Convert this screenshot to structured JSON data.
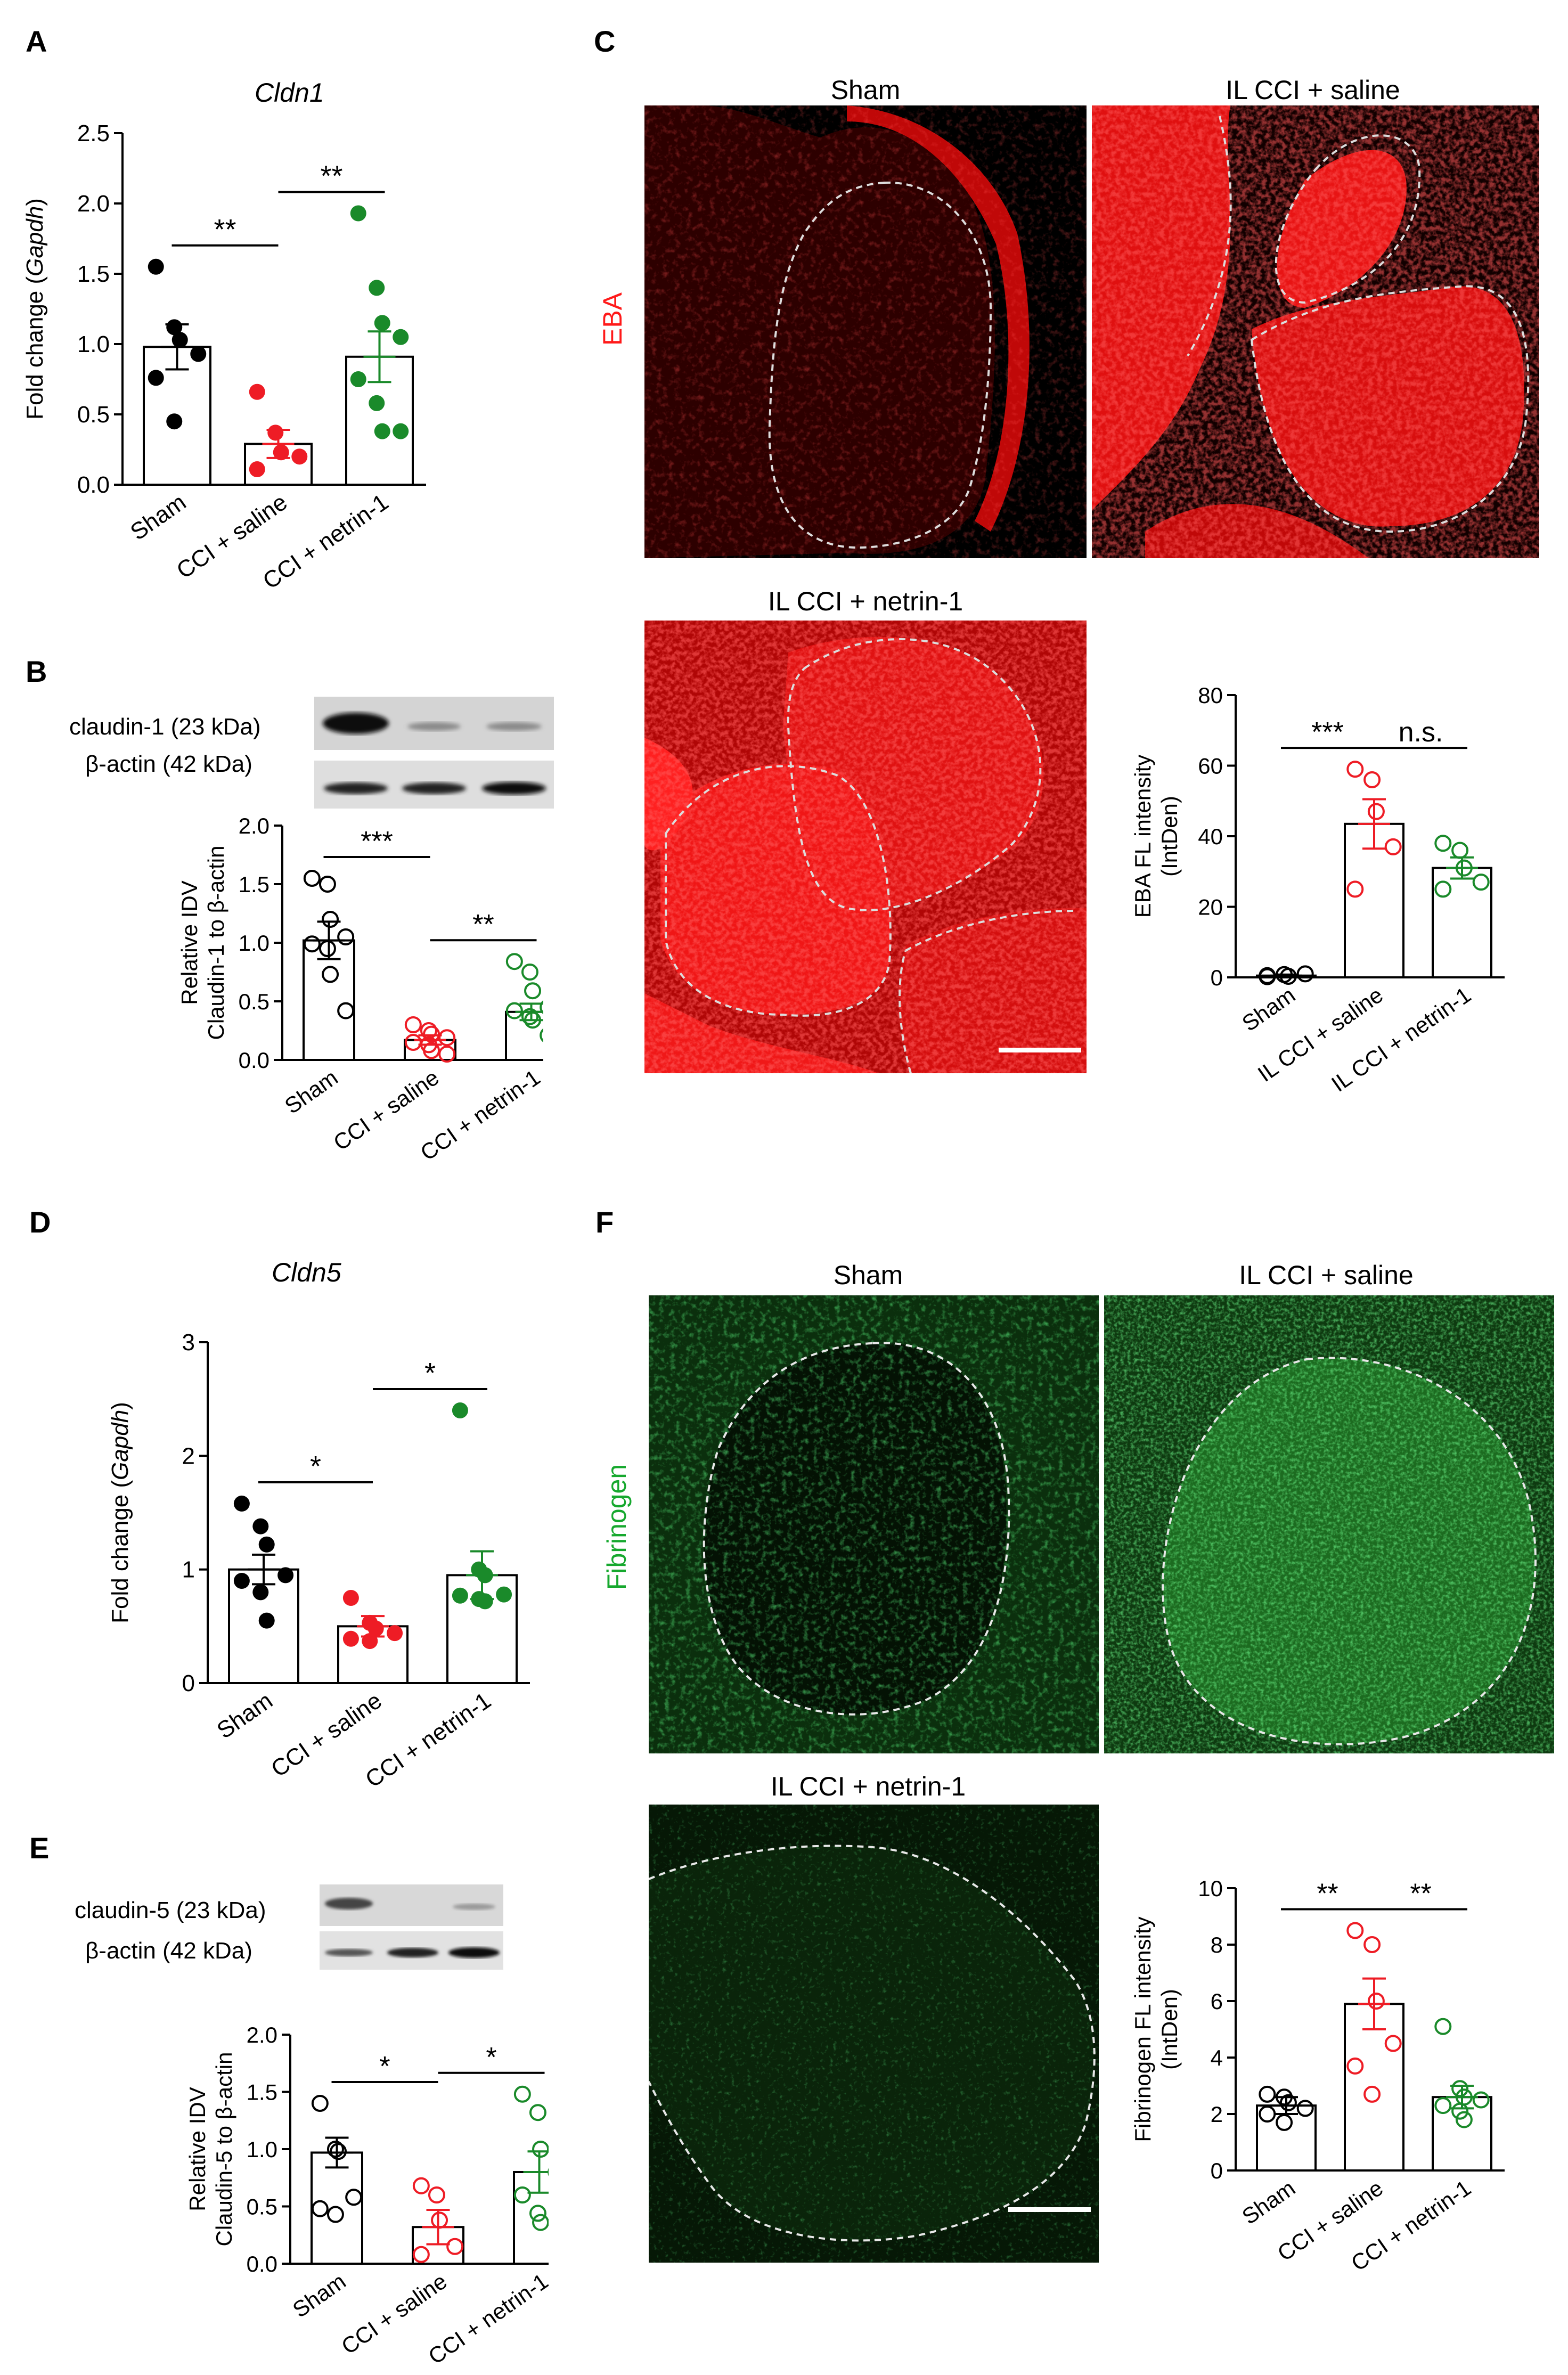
{
  "colors": {
    "sham": "#000000",
    "saline": "#ee1c25",
    "netrin": "#1a8a2a",
    "eba_red": "#ff1a1a",
    "fibrinogen_green": "#16a82e"
  },
  "panel_letters": {
    "A": "A",
    "B": "B",
    "C": "C",
    "D": "D",
    "E": "E",
    "F": "F"
  },
  "panel_A": {
    "gene": "Cldn1"
  },
  "panel_B": {
    "blot_row1": "claudin-1 (23 kDa)",
    "blot_row2": "β-actin (42 kDa)"
  },
  "panel_C": {
    "stain": "EBA",
    "img1_title": "Sham",
    "img2_title": "IL CCI + saline",
    "img3_title": "IL CCI + netrin-1"
  },
  "panel_D": {
    "gene": "Cldn5"
  },
  "panel_E": {
    "blot_row1": "claudin-5 (23 kDa)",
    "blot_row2": "β-actin (42 kDa)"
  },
  "panel_F": {
    "stain": "Fibrinogen",
    "img1_title": "Sham",
    "img2_title": "IL CCI + saline",
    "img3_title": "IL CCI + netrin-1"
  },
  "chart_data": [
    {
      "id": "A",
      "type": "bar",
      "title": "Cldn1",
      "ylabel": "Fold change (Gapdh)",
      "ylim": [
        0,
        2.5
      ],
      "yticks": [
        "0.0",
        "0.5",
        "1.0",
        "1.5",
        "2.0",
        "2.5"
      ],
      "categories": [
        "Sham",
        "CCI + saline",
        "CCI + netrin-1"
      ],
      "values": [
        0.98,
        0.29,
        0.91
      ],
      "sem": [
        0.16,
        0.1,
        0.18
      ],
      "points": [
        [
          1.55,
          1.12,
          1.03,
          0.93,
          0.76,
          0.45
        ],
        [
          0.66,
          0.37,
          0.23,
          0.2,
          0.11
        ],
        [
          1.93,
          1.4,
          1.15,
          1.05,
          0.75,
          0.58,
          0.38,
          0.38
        ]
      ],
      "filled": true,
      "significance": [
        {
          "from": 0,
          "to": 1,
          "label": "**"
        },
        {
          "from": 1,
          "to": 2,
          "label": "**"
        }
      ]
    },
    {
      "id": "B",
      "type": "bar",
      "ylabel": "Relative IDV Claudin-1 to β-actin",
      "ylim": [
        0,
        2.0
      ],
      "yticks": [
        "0.0",
        "0.5",
        "1.0",
        "1.5",
        "2.0"
      ],
      "categories": [
        "Sham",
        "CCI + saline",
        "CCI + netrin-1"
      ],
      "values": [
        1.02,
        0.17,
        0.41
      ],
      "sem": [
        0.16,
        0.04,
        0.07
      ],
      "points": [
        [
          1.55,
          1.5,
          1.2,
          1.05,
          0.99,
          0.95,
          0.73,
          0.42
        ],
        [
          0.3,
          0.25,
          0.22,
          0.19,
          0.15,
          0.13,
          0.08,
          0.05
        ],
        [
          0.84,
          0.75,
          0.59,
          0.45,
          0.42,
          0.37,
          0.34,
          0.21
        ]
      ],
      "filled": false,
      "significance": [
        {
          "from": 0,
          "to": 1,
          "label": "***"
        },
        {
          "from": 1,
          "to": 2,
          "label": "**"
        }
      ]
    },
    {
      "id": "C",
      "type": "bar",
      "ylabel": "EBA FL intensity (IntDen)",
      "ylim": [
        0,
        80
      ],
      "yticks": [
        "0",
        "20",
        "40",
        "60",
        "80"
      ],
      "categories": [
        "Sham",
        "IL CCI + saline",
        "IL CCI + netrin-1"
      ],
      "values": [
        0.5,
        43.5,
        31.0
      ],
      "sem": [
        0.3,
        7.0,
        3.0
      ],
      "points": [
        [
          0.5,
          0.8,
          0.3,
          1.0,
          0.2
        ],
        [
          59,
          56,
          47,
          37,
          25
        ],
        [
          38,
          36,
          31,
          27,
          25
        ]
      ],
      "filled": false,
      "significance": [
        {
          "from": 0,
          "to": 1,
          "label": "***"
        },
        {
          "from": 1,
          "to": 2,
          "label": "n.s."
        }
      ]
    },
    {
      "id": "D",
      "type": "bar",
      "title": "Cldn5",
      "ylabel": "Fold change (Gapdh)",
      "ylim": [
        0,
        3
      ],
      "yticks": [
        "0",
        "1",
        "2",
        "3"
      ],
      "categories": [
        "Sham",
        "CCI + saline",
        "CCI + netrin-1"
      ],
      "values": [
        1.0,
        0.5,
        0.95
      ],
      "sem": [
        0.13,
        0.09,
        0.21
      ],
      "points": [
        [
          1.58,
          1.38,
          1.22,
          0.95,
          0.9,
          0.8,
          0.55
        ],
        [
          0.75,
          0.53,
          0.48,
          0.44,
          0.39,
          0.37
        ],
        [
          2.4,
          1.0,
          0.95,
          0.78,
          0.77,
          0.74,
          0.72
        ]
      ],
      "filled": true,
      "significance": [
        {
          "from": 0,
          "to": 1,
          "label": "*"
        },
        {
          "from": 1,
          "to": 2,
          "label": "*"
        }
      ]
    },
    {
      "id": "E",
      "type": "bar",
      "ylabel": "Relative IDV Claudin-5 to β-actin",
      "ylim": [
        0,
        2.0
      ],
      "yticks": [
        "0.0",
        "0.5",
        "1.0",
        "1.5",
        "2.0"
      ],
      "categories": [
        "Sham",
        "CCI + saline",
        "CCI + netrin-1"
      ],
      "values": [
        0.97,
        0.32,
        0.8
      ],
      "sem": [
        0.13,
        0.15,
        0.18
      ],
      "points": [
        [
          1.4,
          1.0,
          0.98,
          0.58,
          0.48,
          0.43
        ],
        [
          0.68,
          0.6,
          0.38,
          0.15,
          0.08
        ],
        [
          1.48,
          1.32,
          1.0,
          0.8,
          0.6,
          0.44,
          0.36
        ]
      ],
      "filled": false,
      "significance": [
        {
          "from": 0,
          "to": 1,
          "label": "*"
        },
        {
          "from": 1,
          "to": 2,
          "label": "*"
        }
      ]
    },
    {
      "id": "F",
      "type": "bar",
      "ylabel": "Fibrinogen FL intensity (IntDen)",
      "ylim": [
        0,
        10
      ],
      "yticks": [
        "0",
        "2",
        "4",
        "6",
        "8",
        "10"
      ],
      "categories": [
        "Sham",
        "CCI + saline",
        "CCI + netrin-1"
      ],
      "values": [
        2.3,
        5.9,
        2.6
      ],
      "sem": [
        0.3,
        0.9,
        0.4
      ],
      "points": [
        [
          2.7,
          2.6,
          2.4,
          2.2,
          2.0,
          1.7
        ],
        [
          8.5,
          8.0,
          6.0,
          4.5,
          3.7,
          2.7
        ],
        [
          5.1,
          2.9,
          2.6,
          2.5,
          2.3,
          2.1,
          1.8
        ]
      ],
      "filled": false,
      "significance": [
        {
          "from": 0,
          "to": 1,
          "label": "**"
        },
        {
          "from": 1,
          "to": 2,
          "label": "**"
        }
      ]
    }
  ]
}
